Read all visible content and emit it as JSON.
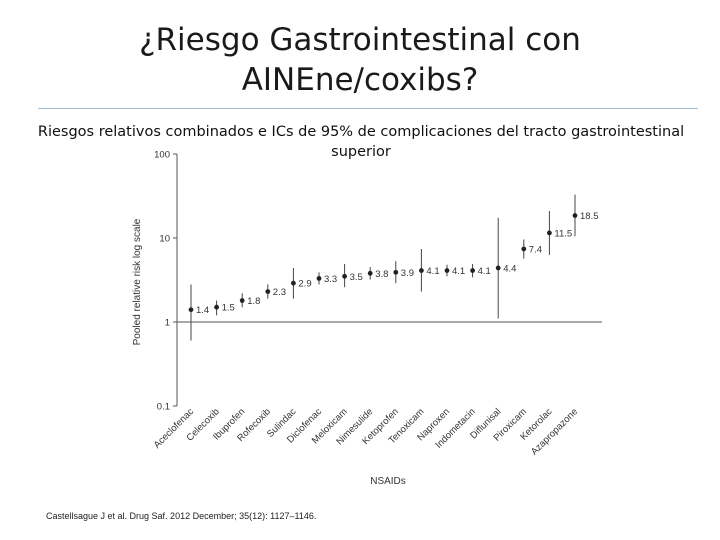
{
  "slide": {
    "title_line1": "¿Riesgo Gastrointestinal con",
    "title_line2": "AINEne/coxibs?",
    "subtitle": "Riesgos relativos combinados e ICs de 95% de complicaciones del tracto gastrointestinal superior",
    "citation": "Castellsague J et al. Drug Saf. 2012 December; 35(12): 1127–1146."
  },
  "chart_data": {
    "type": "scatter",
    "xlabel": "NSAIDs",
    "ylabel": "Pooled relative risk log scale",
    "yscale": "log",
    "ylim": [
      0.1,
      100
    ],
    "yticks": [
      0.1,
      1,
      10,
      100
    ],
    "ytick_labels": [
      "0.1",
      "1",
      "10",
      "100"
    ],
    "reference_line": 1,
    "grid": false,
    "categories": [
      "Aceclofenac",
      "Celecoxib",
      "Ibuprofen",
      "Rofecoxib",
      "Sulindac",
      "Diclofenac",
      "Meloxicam",
      "Nimesulide",
      "Ketoprofen",
      "Tenoxicam",
      "Naproxen",
      "Indometacin",
      "Diflunisal",
      "Piroxicam",
      "Ketorolac",
      "Azapropazone"
    ],
    "values": [
      1.4,
      1.5,
      1.8,
      2.3,
      2.9,
      3.3,
      3.5,
      3.8,
      3.9,
      4.1,
      4.1,
      4.1,
      4.4,
      7.4,
      11.5,
      18.5
    ],
    "value_labels": [
      "1.4",
      "1.5",
      "1.8",
      "2.3",
      "2.9",
      "3.3",
      "3.5",
      "3.8",
      "3.9",
      "4.1",
      "4.1",
      "4.1",
      "4.4",
      "7.4",
      "11.5",
      "18.5"
    ],
    "ci_lower": [
      0.6,
      1.2,
      1.5,
      1.9,
      1.9,
      2.8,
      2.6,
      3.2,
      2.9,
      2.3,
      3.5,
      3.4,
      1.1,
      5.7,
      6.3,
      10.5
    ],
    "ci_upper": [
      2.8,
      1.8,
      2.2,
      2.8,
      4.4,
      3.9,
      4.9,
      4.5,
      5.3,
      7.4,
      4.8,
      4.9,
      17.4,
      9.6,
      21.0,
      32.8
    ]
  }
}
